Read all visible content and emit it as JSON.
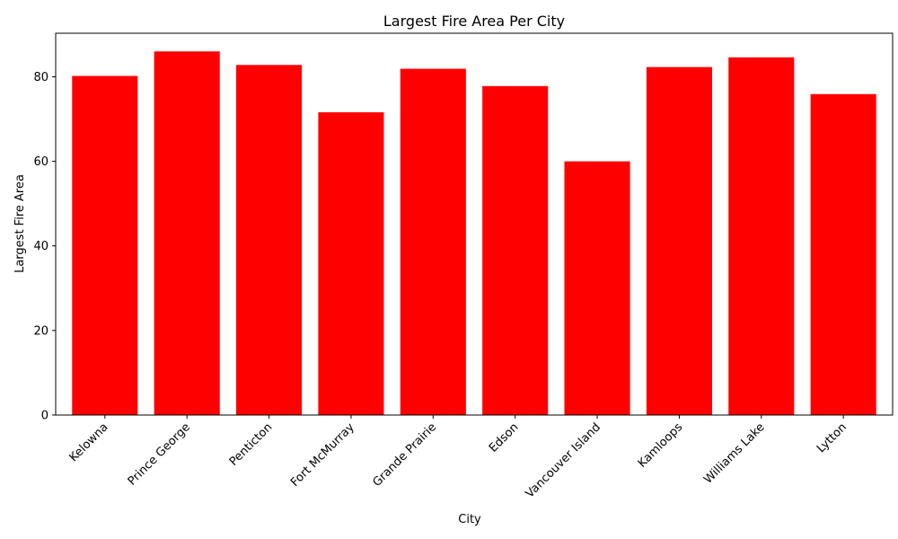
{
  "chart_data": {
    "type": "bar",
    "title": "Largest Fire Area Per City",
    "xlabel": "City",
    "ylabel": "Largest Fire Area",
    "categories": [
      "Kelowna",
      "Prince George",
      "Penticton",
      "Fort McMurray",
      "Grande Prairie",
      "Edson",
      "Vancouver Island",
      "Kamloops",
      "Williams Lake",
      "Lytton"
    ],
    "values": [
      80.2,
      86.0,
      82.8,
      71.6,
      81.9,
      77.8,
      60.0,
      82.3,
      84.6,
      75.9
    ],
    "ylim": [
      0,
      90.3
    ],
    "yticks": [
      0,
      20,
      40,
      60,
      80
    ],
    "bar_color": "#ff0000",
    "grid": false,
    "legend": "none"
  }
}
